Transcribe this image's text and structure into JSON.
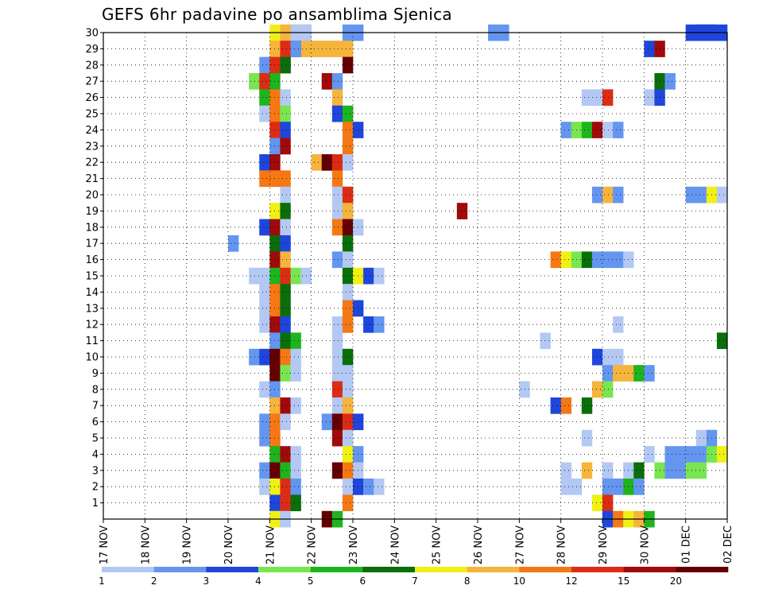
{
  "chart_data": {
    "type": "heatmap",
    "title": "GEFS 6hr padavine po ansamblima Sjenica",
    "x_tick_labels": [
      "17 NOV",
      "18 NOV",
      "19 NOV",
      "20 NOV",
      "21 NOV",
      "22 NOV",
      "23 NOV",
      "24 NOV",
      "25 NOV",
      "26 NOV",
      "27 NOV",
      "28 NOV",
      "29 NOV",
      "30 NOV",
      "01 DEC",
      "02 DEC"
    ],
    "x_range_days": [
      0,
      15
    ],
    "y_tick_labels": [
      "1",
      "2",
      "3",
      "4",
      "5",
      "6",
      "7",
      "8",
      "9",
      "10",
      "11",
      "12",
      "13",
      "14",
      "15",
      "16",
      "17",
      "18",
      "19",
      "20",
      "21",
      "22",
      "23",
      "24",
      "25",
      "26",
      "27",
      "28",
      "29",
      "30"
    ],
    "y_range": [
      0,
      30
    ],
    "grid": true,
    "colorbar": {
      "labels": [
        "1",
        "2",
        "3",
        "4",
        "5",
        "6",
        "7",
        "8",
        "10",
        "12",
        "15",
        "20"
      ],
      "colors": [
        "#b4c8f4",
        "#6496f0",
        "#1e46dc",
        "#78e650",
        "#1eb41e",
        "#0a6e0a",
        "#f0f014",
        "#f5b43c",
        "#f57814",
        "#dc2d14",
        "#a00a0a",
        "#640000"
      ]
    },
    "cells": [
      [
        30,
        4.0,
        4,
        6
      ],
      [
        30,
        4.25,
        3,
        7
      ],
      [
        30,
        4.5,
        2,
        0
      ],
      [
        30,
        5.75,
        2,
        1
      ],
      [
        30,
        9.25,
        2,
        1
      ],
      [
        30,
        14.0,
        2,
        2
      ],
      [
        30,
        14.25,
        2,
        2
      ],
      [
        30,
        14.5,
        2,
        2
      ],
      [
        29,
        4.0,
        8,
        7
      ],
      [
        29,
        4.25,
        2,
        9
      ],
      [
        29,
        4.5,
        1,
        1
      ],
      [
        29,
        13.0,
        1,
        2
      ],
      [
        29,
        13.25,
        1,
        10
      ],
      [
        28,
        3.75,
        1,
        1
      ],
      [
        28,
        4.0,
        2,
        9
      ],
      [
        28,
        4.25,
        1,
        5
      ],
      [
        28,
        5.75,
        1,
        11
      ],
      [
        27,
        3.5,
        1,
        3
      ],
      [
        27,
        3.75,
        1,
        9
      ],
      [
        27,
        4.0,
        1,
        4
      ],
      [
        27,
        5.25,
        1,
        10
      ],
      [
        27,
        5.5,
        1,
        1
      ],
      [
        27,
        13.25,
        1,
        5
      ],
      [
        27,
        13.5,
        1,
        1
      ],
      [
        26,
        3.75,
        1,
        4
      ],
      [
        26,
        4.0,
        1,
        8
      ],
      [
        26,
        4.25,
        1,
        0
      ],
      [
        26,
        5.5,
        1,
        7
      ],
      [
        26,
        11.5,
        2,
        0
      ],
      [
        26,
        11.75,
        2,
        0
      ],
      [
        26,
        12.0,
        1,
        9
      ],
      [
        26,
        13.0,
        1,
        0
      ],
      [
        26,
        13.25,
        1,
        2
      ],
      [
        25,
        3.75,
        1,
        0
      ],
      [
        25,
        4.0,
        1,
        8
      ],
      [
        25,
        4.25,
        1,
        3
      ],
      [
        25,
        5.5,
        1,
        2
      ],
      [
        25,
        5.75,
        1,
        4
      ],
      [
        24,
        4.0,
        1,
        9
      ],
      [
        24,
        4.25,
        1,
        2
      ],
      [
        24,
        5.75,
        1,
        8
      ],
      [
        24,
        6.0,
        1,
        2
      ],
      [
        24,
        11.0,
        1,
        1
      ],
      [
        24,
        11.25,
        1,
        3
      ],
      [
        24,
        11.5,
        1,
        4
      ],
      [
        24,
        11.75,
        1,
        10
      ],
      [
        24,
        12.0,
        1,
        0
      ],
      [
        24,
        12.25,
        1,
        1
      ],
      [
        23,
        4.0,
        1,
        1
      ],
      [
        23,
        4.25,
        1,
        10
      ],
      [
        23,
        5.75,
        1,
        8
      ],
      [
        22,
        3.75,
        1,
        2
      ],
      [
        22,
        4.0,
        1,
        10
      ],
      [
        22,
        5.0,
        1,
        7
      ],
      [
        22,
        5.25,
        1,
        11
      ],
      [
        22,
        5.5,
        1,
        9
      ],
      [
        22,
        5.75,
        1,
        0
      ],
      [
        22,
        15.0,
        1,
        2
      ],
      [
        21,
        3.75,
        2,
        8
      ],
      [
        21,
        4.0,
        2,
        8
      ],
      [
        21,
        5.5,
        1,
        8
      ],
      [
        20,
        4.25,
        1,
        0
      ],
      [
        20,
        5.5,
        1,
        0
      ],
      [
        20,
        5.75,
        1,
        9
      ],
      [
        20,
        11.75,
        1,
        1
      ],
      [
        20,
        12.0,
        1,
        7
      ],
      [
        20,
        12.25,
        1,
        1
      ],
      [
        20,
        14.0,
        1,
        1
      ],
      [
        20,
        14.25,
        1,
        1
      ],
      [
        20,
        14.5,
        1,
        6
      ],
      [
        20,
        14.75,
        1,
        0
      ],
      [
        19,
        4.0,
        1,
        6
      ],
      [
        19,
        4.25,
        1,
        5
      ],
      [
        19,
        5.5,
        1,
        0
      ],
      [
        19,
        5.75,
        1,
        7
      ],
      [
        19,
        8.5,
        1,
        10
      ],
      [
        19,
        15.0,
        1,
        1
      ],
      [
        18,
        3.75,
        1,
        2
      ],
      [
        18,
        4.0,
        1,
        10
      ],
      [
        18,
        4.25,
        1,
        0
      ],
      [
        18,
        5.5,
        1,
        8
      ],
      [
        18,
        5.75,
        1,
        11
      ],
      [
        18,
        6.0,
        1,
        0
      ],
      [
        17,
        3.0,
        1,
        1
      ],
      [
        17,
        4.0,
        1,
        5
      ],
      [
        17,
        4.25,
        1,
        2
      ],
      [
        17,
        5.75,
        1,
        5
      ],
      [
        16,
        4.0,
        1,
        10
      ],
      [
        16,
        4.25,
        1,
        7
      ],
      [
        16,
        5.5,
        1,
        1
      ],
      [
        16,
        5.75,
        1,
        0
      ],
      [
        16,
        10.75,
        1,
        8
      ],
      [
        16,
        11.0,
        1,
        6
      ],
      [
        16,
        11.25,
        1,
        3
      ],
      [
        16,
        11.5,
        1,
        5
      ],
      [
        16,
        11.75,
        1,
        1
      ],
      [
        16,
        12.0,
        1,
        1
      ],
      [
        16,
        12.25,
        1,
        1
      ],
      [
        16,
        12.5,
        1,
        0
      ],
      [
        15,
        3.5,
        1,
        0
      ],
      [
        15,
        3.75,
        1,
        0
      ],
      [
        15,
        4.0,
        1,
        4
      ],
      [
        15,
        4.25,
        1,
        9
      ],
      [
        15,
        4.5,
        1,
        3
      ],
      [
        15,
        4.75,
        1,
        0
      ],
      [
        15,
        5.75,
        1,
        5
      ],
      [
        15,
        6.0,
        1,
        6
      ],
      [
        15,
        6.25,
        1,
        2
      ],
      [
        15,
        6.5,
        1,
        0
      ],
      [
        14,
        3.75,
        1,
        0
      ],
      [
        14,
        4.0,
        1,
        8
      ],
      [
        14,
        4.25,
        1,
        5
      ],
      [
        14,
        5.75,
        1,
        0
      ],
      [
        13,
        3.75,
        1,
        0
      ],
      [
        13,
        4.0,
        1,
        8
      ],
      [
        13,
        4.25,
        1,
        5
      ],
      [
        13,
        5.75,
        1,
        8
      ],
      [
        13,
        6.0,
        1,
        2
      ],
      [
        12,
        3.75,
        1,
        0
      ],
      [
        12,
        4.0,
        1,
        10
      ],
      [
        12,
        4.25,
        1,
        2
      ],
      [
        12,
        5.5,
        1,
        0
      ],
      [
        12,
        5.75,
        1,
        8
      ],
      [
        12,
        6.25,
        1,
        2
      ],
      [
        12,
        6.5,
        1,
        1
      ],
      [
        12,
        12.25,
        1,
        0
      ],
      [
        11,
        4.0,
        1,
        1
      ],
      [
        11,
        4.25,
        1,
        5
      ],
      [
        11,
        4.5,
        1,
        4
      ],
      [
        11,
        5.5,
        1,
        0
      ],
      [
        11,
        10.5,
        1,
        0
      ],
      [
        11,
        14.75,
        1,
        5
      ],
      [
        11,
        15.0,
        1,
        3
      ],
      [
        10,
        3.5,
        1,
        1
      ],
      [
        10,
        3.75,
        1,
        2
      ],
      [
        10,
        4.0,
        1,
        11
      ],
      [
        10,
        4.25,
        1,
        8
      ],
      [
        10,
        4.5,
        1,
        0
      ],
      [
        10,
        5.5,
        1,
        0
      ],
      [
        10,
        5.75,
        1,
        5
      ],
      [
        10,
        11.75,
        1,
        2
      ],
      [
        10,
        12.0,
        1,
        0
      ],
      [
        10,
        12.25,
        1,
        0
      ],
      [
        9,
        4.0,
        1,
        11
      ],
      [
        9,
        4.25,
        1,
        3
      ],
      [
        9,
        4.5,
        1,
        0
      ],
      [
        9,
        5.5,
        1,
        0
      ],
      [
        9,
        5.75,
        1,
        0
      ],
      [
        9,
        12.0,
        1,
        1
      ],
      [
        9,
        12.25,
        1,
        7
      ],
      [
        9,
        12.5,
        1,
        7
      ],
      [
        9,
        12.75,
        1,
        4
      ],
      [
        9,
        13.0,
        1,
        1
      ],
      [
        8,
        3.75,
        1,
        0
      ],
      [
        8,
        4.0,
        1,
        1
      ],
      [
        8,
        5.5,
        1,
        9
      ],
      [
        8,
        5.75,
        1,
        0
      ],
      [
        8,
        10.0,
        1,
        0
      ],
      [
        8,
        11.75,
        1,
        7
      ],
      [
        8,
        12.0,
        1,
        3
      ],
      [
        7,
        4.0,
        1,
        7
      ],
      [
        7,
        4.25,
        1,
        10
      ],
      [
        7,
        4.5,
        1,
        0
      ],
      [
        7,
        5.5,
        1,
        0
      ],
      [
        7,
        5.75,
        1,
        7
      ],
      [
        7,
        10.75,
        1,
        2
      ],
      [
        7,
        11.0,
        1,
        8
      ],
      [
        7,
        11.5,
        1,
        5
      ],
      [
        6,
        3.75,
        1,
        1
      ],
      [
        6,
        4.0,
        1,
        8
      ],
      [
        6,
        4.25,
        1,
        0
      ],
      [
        6,
        5.25,
        1,
        1
      ],
      [
        6,
        5.5,
        1,
        11
      ],
      [
        6,
        5.75,
        1,
        9
      ],
      [
        6,
        6.0,
        1,
        2
      ],
      [
        5,
        3.75,
        1,
        1
      ],
      [
        5,
        4.0,
        1,
        8
      ],
      [
        5,
        5.5,
        1,
        10
      ],
      [
        5,
        5.75,
        1,
        0
      ],
      [
        5,
        11.5,
        1,
        0
      ],
      [
        5,
        14.25,
        1,
        0
      ],
      [
        5,
        14.5,
        1,
        1
      ],
      [
        4,
        4.0,
        1,
        4
      ],
      [
        4,
        4.25,
        1,
        10
      ],
      [
        4,
        4.5,
        1,
        0
      ],
      [
        4,
        5.75,
        1,
        6
      ],
      [
        4,
        6.0,
        1,
        1
      ],
      [
        4,
        13.0,
        1,
        0
      ],
      [
        4,
        13.5,
        1,
        1
      ],
      [
        4,
        13.75,
        1,
        1
      ],
      [
        4,
        14.0,
        1,
        1
      ],
      [
        4,
        14.25,
        1,
        1
      ],
      [
        4,
        14.5,
        1,
        3
      ],
      [
        4,
        14.75,
        1,
        6
      ],
      [
        4,
        15.0,
        1,
        4
      ],
      [
        3,
        3.75,
        1,
        1
      ],
      [
        3,
        4.0,
        1,
        11
      ],
      [
        3,
        4.25,
        1,
        4
      ],
      [
        3,
        4.5,
        1,
        0
      ],
      [
        3,
        5.5,
        1,
        11
      ],
      [
        3,
        5.75,
        1,
        8
      ],
      [
        3,
        6.0,
        1,
        0
      ],
      [
        3,
        11.0,
        1,
        0
      ],
      [
        3,
        11.5,
        1,
        7
      ],
      [
        3,
        12.0,
        1,
        0
      ],
      [
        3,
        12.5,
        1,
        0
      ],
      [
        3,
        12.75,
        1,
        5
      ],
      [
        3,
        13.25,
        1,
        3
      ],
      [
        3,
        13.5,
        1,
        1
      ],
      [
        3,
        13.75,
        1,
        1
      ],
      [
        3,
        14.0,
        1,
        3
      ],
      [
        3,
        14.25,
        1,
        3
      ],
      [
        2,
        3.75,
        1,
        0
      ],
      [
        2,
        4.0,
        1,
        6
      ],
      [
        2,
        4.25,
        1,
        9
      ],
      [
        2,
        4.5,
        1,
        1
      ],
      [
        2,
        5.75,
        1,
        0
      ],
      [
        2,
        6.0,
        1,
        2
      ],
      [
        2,
        6.25,
        1,
        1
      ],
      [
        2,
        6.5,
        1,
        0
      ],
      [
        2,
        11.0,
        1,
        0
      ],
      [
        2,
        11.25,
        1,
        0
      ],
      [
        2,
        12.0,
        1,
        1
      ],
      [
        2,
        12.25,
        1,
        1
      ],
      [
        2,
        12.5,
        1,
        4
      ],
      [
        2,
        12.75,
        1,
        1
      ],
      [
        1,
        4.0,
        1,
        2
      ],
      [
        1,
        4.25,
        1,
        9
      ],
      [
        1,
        4.5,
        1,
        5
      ],
      [
        1,
        5.75,
        1,
        8
      ],
      [
        1,
        11.75,
        1,
        6
      ],
      [
        1,
        12.0,
        1,
        9
      ],
      [
        0,
        4.0,
        1,
        6
      ],
      [
        0,
        4.25,
        1,
        0
      ],
      [
        0,
        5.25,
        1,
        11
      ],
      [
        0,
        5.5,
        1,
        4
      ],
      [
        0,
        12.0,
        1,
        2
      ],
      [
        0,
        12.25,
        1,
        8
      ],
      [
        0,
        12.5,
        1,
        6
      ],
      [
        0,
        12.75,
        1,
        7
      ],
      [
        0,
        13.0,
        1,
        4
      ]
    ]
  }
}
